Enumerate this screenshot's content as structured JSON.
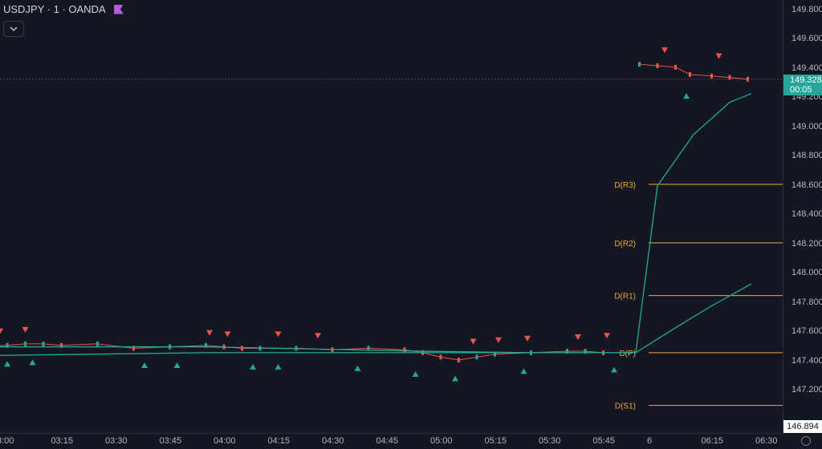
{
  "legend": {
    "symbol": "USDJPY",
    "interval": "1",
    "exchange": "OANDA",
    "title": "USDJPY · 1 · OANDA"
  },
  "price_axis": {
    "ticks": [
      "149.800",
      "149.600",
      "149.400",
      "149.200",
      "149.000",
      "148.800",
      "148.600",
      "148.400",
      "148.200",
      "148.000",
      "147.800",
      "147.600",
      "147.400",
      "147.200"
    ],
    "last_price": "149.328",
    "countdown": "00:05",
    "low_price": "146.894"
  },
  "time_axis": {
    "ticks": [
      "3:00",
      "03:15",
      "03:30",
      "03:45",
      "04:00",
      "04:15",
      "04:30",
      "04:45",
      "05:00",
      "05:15",
      "05:30",
      "05:45",
      "6",
      "06:15",
      "06:30"
    ]
  },
  "pivot_levels": [
    {
      "label": "D(R3)",
      "value": 148.61
    },
    {
      "label": "D(R2)",
      "value": 148.21
    },
    {
      "label": "D(R1)",
      "value": 147.85
    },
    {
      "label": "D(P)",
      "value": 147.46
    },
    {
      "label": "D(S1)",
      "value": 147.1
    }
  ],
  "colors": {
    "background": "#131722",
    "up": "#26a69a",
    "down": "#ef5350",
    "pivot": "#f6a623",
    "ma_fast": "#f23645",
    "ma_slow": "#22ab94",
    "grid_text": "#b2b5be"
  },
  "icons": [
    "flag-icon",
    "chevron-down-icon",
    "settings-icon"
  ],
  "chart_data": {
    "type": "line",
    "title": "USDJPY · 1 · OANDA",
    "x_unit": "time (1-minute bars)",
    "ylim": [
      146.894,
      149.9
    ],
    "grid": false,
    "series": [
      {
        "name": "price",
        "x": [
          "02:58",
          "03:05",
          "03:10",
          "03:15",
          "03:20",
          "03:30",
          "03:40",
          "03:50",
          "04:00",
          "04:05",
          "04:10",
          "04:15",
          "04:25",
          "04:35",
          "04:45",
          "04:55",
          "05:00",
          "05:05",
          "05:10",
          "05:15",
          "05:20",
          "05:30",
          "05:40",
          "05:45",
          "05:50",
          "06:00",
          "06:05",
          "06:10",
          "06:14",
          "06:20",
          "06:25",
          "06:30"
        ],
        "y": [
          147.5,
          147.51,
          147.52,
          147.52,
          147.51,
          147.52,
          147.49,
          147.5,
          147.51,
          147.5,
          147.49,
          147.49,
          147.49,
          147.48,
          147.49,
          147.48,
          147.46,
          147.43,
          147.41,
          147.43,
          147.45,
          147.46,
          147.47,
          147.47,
          147.46,
          149.43,
          149.42,
          149.41,
          149.36,
          149.35,
          149.34,
          149.328
        ]
      },
      {
        "x": [
          "02:58",
          "04:00",
          "05:00",
          "05:30",
          "05:59",
          "06:05",
          "06:15",
          "06:25",
          "06:31"
        ],
        "y": [
          147.5,
          147.5,
          147.47,
          147.46,
          147.46,
          148.6,
          148.95,
          149.17,
          149.23
        ]
      },
      {
        "x": [
          "02:58",
          "04:00",
          "05:00",
          "05:30",
          "05:59",
          "06:10",
          "06:20",
          "06:31"
        ],
        "y": [
          147.44,
          147.46,
          147.46,
          147.46,
          147.46,
          147.63,
          147.78,
          147.93
        ]
      }
    ],
    "signals": {
      "sell": [
        {
          "x": "03:03",
          "y": 147.51
        },
        {
          "x": "03:10",
          "y": 147.52
        },
        {
          "x": "04:01",
          "y": 147.5
        },
        {
          "x": "04:06",
          "y": 147.49
        },
        {
          "x": "04:20",
          "y": 147.49
        },
        {
          "x": "04:31",
          "y": 147.48
        },
        {
          "x": "05:14",
          "y": 147.44
        },
        {
          "x": "05:21",
          "y": 147.45
        },
        {
          "x": "05:29",
          "y": 147.46
        },
        {
          "x": "05:43",
          "y": 147.47
        },
        {
          "x": "05:51",
          "y": 147.48
        },
        {
          "x": "06:07",
          "y": 149.43
        },
        {
          "x": "06:22",
          "y": 149.39
        }
      ],
      "buy": [
        {
          "x": "03:05",
          "y": 147.48
        },
        {
          "x": "03:12",
          "y": 147.49
        },
        {
          "x": "03:43",
          "y": 147.47
        },
        {
          "x": "03:52",
          "y": 147.47
        },
        {
          "x": "04:13",
          "y": 147.46
        },
        {
          "x": "04:20",
          "y": 147.46
        },
        {
          "x": "04:42",
          "y": 147.45
        },
        {
          "x": "04:58",
          "y": 147.41
        },
        {
          "x": "05:09",
          "y": 147.38
        },
        {
          "x": "05:28",
          "y": 147.43
        },
        {
          "x": "05:53",
          "y": 147.44
        },
        {
          "x": "06:13",
          "y": 149.31
        }
      ]
    }
  }
}
